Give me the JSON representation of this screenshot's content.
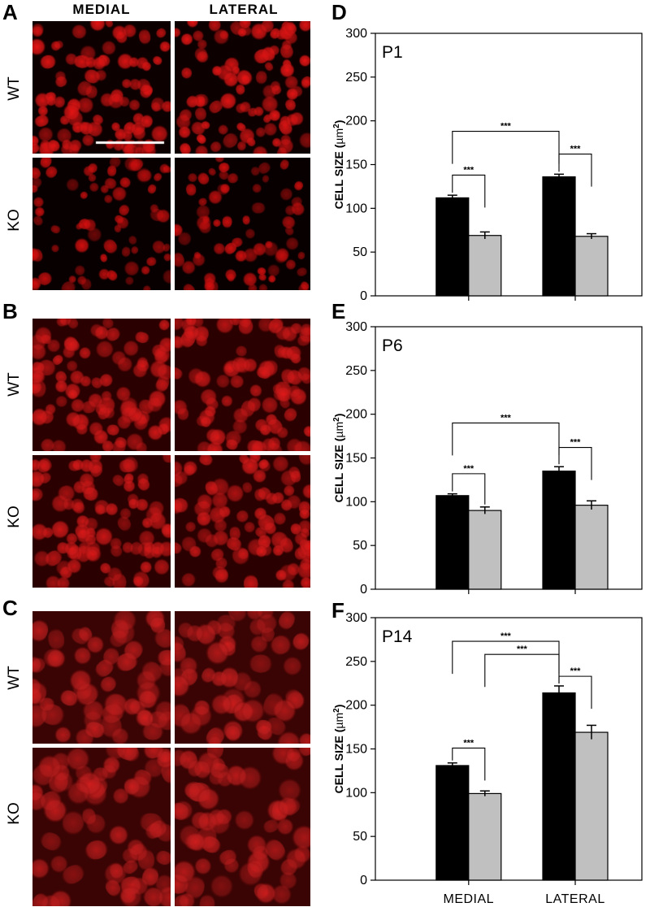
{
  "panel_letters": {
    "A": "A",
    "B": "B",
    "C": "C",
    "D": "D",
    "E": "E",
    "F": "F"
  },
  "column_headers": {
    "medial": "MEDIAL",
    "lateral": "LATERAL"
  },
  "row_labels": {
    "wt": "WT",
    "ko": "KO"
  },
  "micrograph_color": "#e00000",
  "chart_data": [
    {
      "type": "bar",
      "panel": "D",
      "label": "P1",
      "categories": [
        "MEDIAL",
        "LATERAL"
      ],
      "series": [
        {
          "values": [
            112,
            136
          ],
          "errors": [
            3,
            3
          ],
          "color": "#000000"
        },
        {
          "values": [
            69,
            68
          ],
          "errors": [
            4,
            3
          ],
          "color": "#c0c0c0"
        }
      ],
      "ylabel_main": "CELL SIZE (",
      "ylabel_unit": "µm",
      "ylabel_sup": "2",
      "ylabel_end": ")",
      "ylim": [
        0,
        300
      ],
      "yticks": [
        "0",
        "50",
        "100",
        "150",
        "200",
        "250",
        "300"
      ],
      "show_category_labels": false,
      "significance": [
        {
          "text": "***",
          "from": [
            0,
            0
          ],
          "to": [
            1,
            0
          ],
          "level": 188
        },
        {
          "text": "***",
          "from": [
            0,
            0
          ],
          "to": [
            0,
            1
          ],
          "level": 138
        },
        {
          "text": "***",
          "from": [
            1,
            0
          ],
          "to": [
            1,
            1
          ],
          "level": 162
        }
      ]
    },
    {
      "type": "bar",
      "panel": "E",
      "label": "P6",
      "categories": [
        "MEDIAL",
        "LATERAL"
      ],
      "series": [
        {
          "values": [
            107,
            135
          ],
          "errors": [
            2,
            5
          ],
          "color": "#000000"
        },
        {
          "values": [
            90,
            96
          ],
          "errors": [
            4,
            5
          ],
          "color": "#c0c0c0"
        }
      ],
      "ylabel_main": "CELL SIZE (",
      "ylabel_unit": "µm",
      "ylabel_sup": "2",
      "ylabel_end": ")",
      "ylim": [
        0,
        300
      ],
      "yticks": [
        "0",
        "50",
        "100",
        "150",
        "200",
        "250",
        "300"
      ],
      "show_category_labels": false,
      "significance": [
        {
          "text": "***",
          "from": [
            0,
            0
          ],
          "to": [
            1,
            0
          ],
          "level": 190
        },
        {
          "text": "***",
          "from": [
            0,
            0
          ],
          "to": [
            0,
            1
          ],
          "level": 132
        },
        {
          "text": "***",
          "from": [
            1,
            0
          ],
          "to": [
            1,
            1
          ],
          "level": 162
        }
      ]
    },
    {
      "type": "bar",
      "panel": "F",
      "label": "P14",
      "categories": [
        "MEDIAL",
        "LATERAL"
      ],
      "series": [
        {
          "values": [
            131,
            214
          ],
          "errors": [
            3,
            8
          ],
          "color": "#000000"
        },
        {
          "values": [
            99,
            169
          ],
          "errors": [
            3,
            8
          ],
          "color": "#c0c0c0"
        }
      ],
      "ylabel_main": "CELL SIZE (",
      "ylabel_unit": "µm",
      "ylabel_sup": "2",
      "ylabel_end": ")",
      "ylim": [
        0,
        300
      ],
      "yticks": [
        "0",
        "50",
        "100",
        "150",
        "200",
        "250",
        "300"
      ],
      "show_category_labels": true,
      "significance": [
        {
          "text": "***",
          "from": [
            0,
            0
          ],
          "to": [
            1,
            0
          ],
          "level": 273
        },
        {
          "text": "***",
          "from": [
            0,
            1
          ],
          "to": [
            1,
            0
          ],
          "level": 258
        },
        {
          "text": "***",
          "from": [
            1,
            0
          ],
          "to": [
            1,
            1
          ],
          "level": 233
        },
        {
          "text": "***",
          "from": [
            0,
            0
          ],
          "to": [
            0,
            1
          ],
          "level": 151
        }
      ]
    }
  ]
}
